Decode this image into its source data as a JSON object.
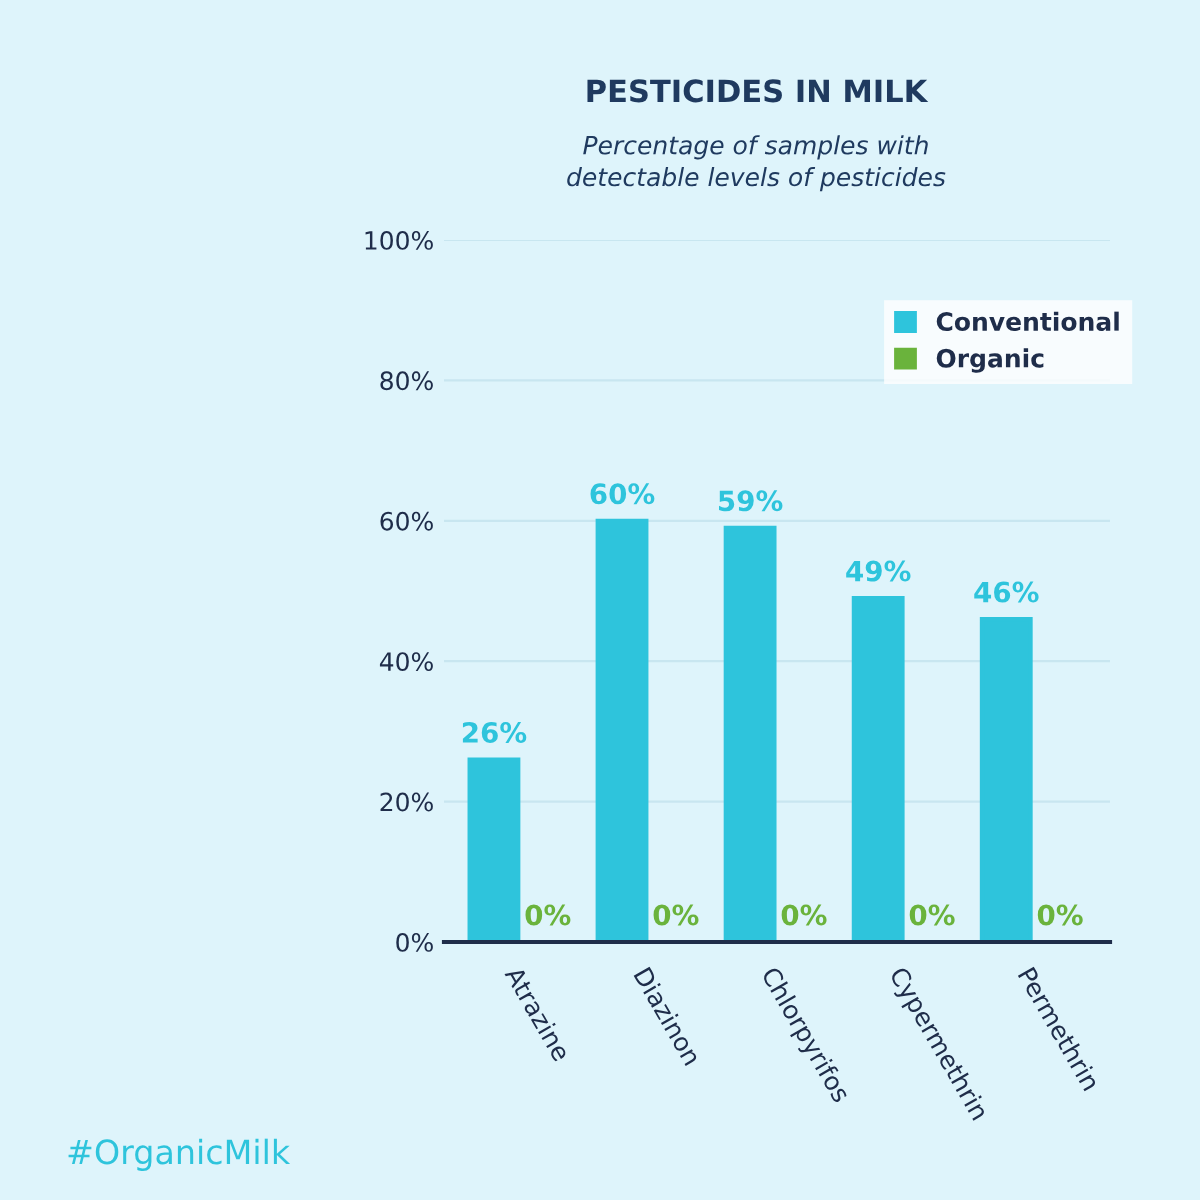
{
  "chart_data": {
    "type": "bar",
    "title": "PESTICIDES IN MILK",
    "subtitle": "Percentage of samples with\ndetectable levels of pesticides",
    "categories": [
      "Atrazine",
      "Diazinon",
      "Chlorpyrifos",
      "Cypermethrin",
      "Permethrin"
    ],
    "series": [
      {
        "name": "Conventional",
        "color": "#2ec4dc",
        "values": [
          26,
          60,
          59,
          49,
          46
        ],
        "value_labels": [
          "26%",
          "60%",
          "59%",
          "49%",
          "46%"
        ]
      },
      {
        "name": "Organic",
        "color": "#6ab33c",
        "values": [
          0,
          0,
          0,
          0,
          0
        ],
        "value_labels": [
          "0%",
          "0%",
          "0%",
          "0%",
          "0%"
        ]
      }
    ],
    "ylim": [
      0,
      100
    ],
    "yticks": [
      {
        "value": 0,
        "label": "0%"
      },
      {
        "value": 20,
        "label": "20%"
      },
      {
        "value": 40,
        "label": "40%"
      },
      {
        "value": 60,
        "label": "60%"
      },
      {
        "value": 80,
        "label": "80%"
      },
      {
        "value": 100,
        "label": "100%"
      }
    ],
    "grid": "y",
    "legend": "top right",
    "annotations": [
      "#OrganicMilk"
    ]
  }
}
